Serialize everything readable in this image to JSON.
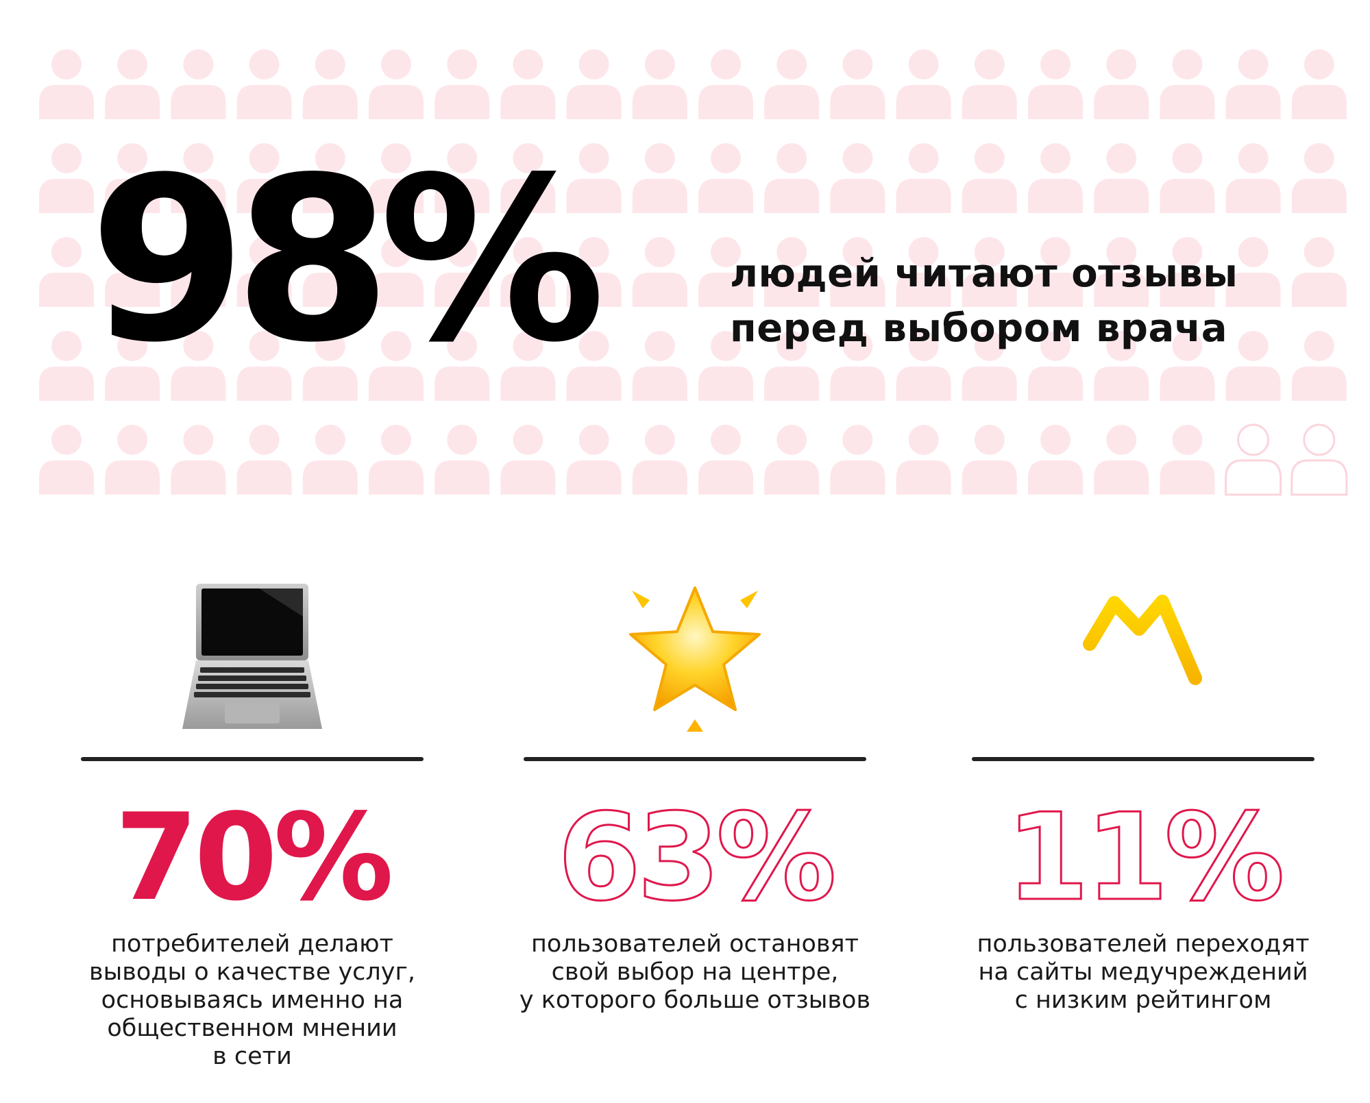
{
  "hero": {
    "percent": "98%",
    "text_lines": [
      "людей читают отзывы",
      "перед выбором врача"
    ],
    "people_total": 100,
    "people_highlighted": 98
  },
  "colors": {
    "accent": "#e0174b",
    "people_fill": "#fde6ea",
    "people_outline": "#fbd5dc",
    "text": "#111111"
  },
  "stats": [
    {
      "icon": "laptop-icon",
      "percent": "70%",
      "style": "filled",
      "lines": [
        "потребителей делают",
        "выводы о качестве услуг,",
        "основываясь именно на",
        "общественном мнении",
        "в сети"
      ]
    },
    {
      "icon": "glowing-star-icon",
      "percent": "63%",
      "style": "outline",
      "lines": [
        "пользователей остановят",
        "свой выбор на центре,",
        "у которого больше отзывов"
      ]
    },
    {
      "icon": "trend-line-icon",
      "percent": "11%",
      "style": "outline",
      "lines": [
        "пользователей переходят",
        "на сайты медучреждений",
        "с низким рейтингом"
      ]
    }
  ]
}
